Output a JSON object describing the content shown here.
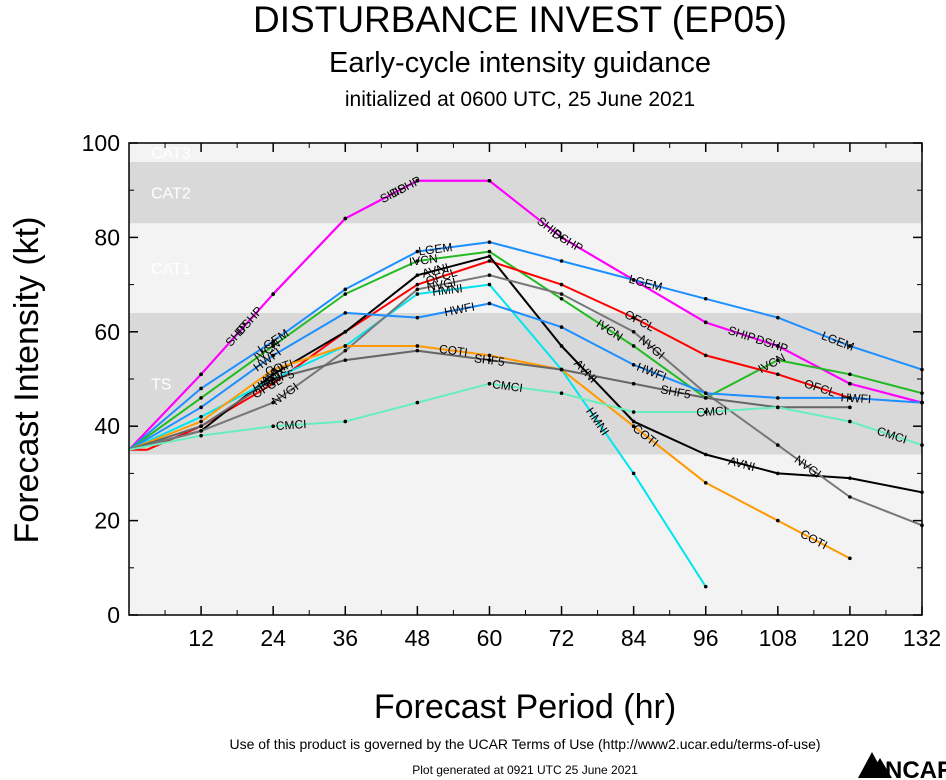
{
  "chart_data": {
    "type": "line",
    "title": "DISTURBANCE INVEST (EP05)",
    "subtitle": "Early-cycle intensity guidance",
    "subtitle2": "initialized at 0600 UTC, 25 June 2021",
    "xlabel": "Forecast Period (hr)",
    "ylabel": "Forecast Intensity (kt)",
    "xlim": [
      0,
      132
    ],
    "ylim": [
      0,
      100
    ],
    "xticks": [
      12,
      24,
      36,
      48,
      60,
      72,
      84,
      96,
      108,
      120,
      132
    ],
    "yticks": [
      0,
      20,
      40,
      60,
      80,
      100
    ],
    "bands": [
      {
        "name": "TS",
        "from": 34,
        "to": 64,
        "color": "#d9d9d9"
      },
      {
        "name": "CAT1",
        "from": 64,
        "to": 83,
        "color": "#f3f3f3"
      },
      {
        "name": "CAT2",
        "from": 83,
        "to": 96,
        "color": "#d9d9d9"
      },
      {
        "name": "CAT3",
        "from": 96,
        "to": 100,
        "color": "#f3f3f3"
      }
    ],
    "series": [
      {
        "name": "SHIP",
        "color": "#ff00ff",
        "x": [
          0,
          12,
          24,
          36,
          48,
          60,
          72,
          84,
          96,
          108,
          120,
          132
        ],
        "values": [
          35,
          51,
          68,
          84,
          92,
          92,
          80,
          71,
          62,
          57,
          49,
          45
        ],
        "labels": [
          {
            "text": "SHIP",
            "x": 18
          },
          {
            "text": "SHIP",
            "x": 44
          },
          {
            "text": "SHIP",
            "x": 70
          },
          {
            "text": "SHIP",
            "x": 102
          }
        ]
      },
      {
        "name": "DSHP",
        "color": "#ff00ff",
        "x": [
          0,
          12,
          24,
          36,
          48,
          60,
          72,
          84,
          96,
          108,
          120,
          132
        ],
        "values": [
          35,
          51,
          68,
          84,
          92,
          92,
          80,
          71,
          62,
          57,
          49,
          45
        ],
        "labels": [
          {
            "text": "DSHP",
            "x": 20
          },
          {
            "text": "DSHP",
            "x": 46
          },
          {
            "text": "DSHP",
            "x": 73
          },
          {
            "text": "DSHP",
            "x": 107
          }
        ]
      },
      {
        "name": "LGEM",
        "color": "#1e8fff",
        "x": [
          0,
          12,
          24,
          36,
          48,
          60,
          72,
          84,
          96,
          108,
          120,
          132
        ],
        "values": [
          35,
          48,
          58,
          69,
          77,
          79,
          75,
          71,
          67,
          63,
          57,
          52
        ],
        "labels": [
          {
            "text": "LGEM",
            "x": 24
          },
          {
            "text": "LGEM",
            "x": 51
          },
          {
            "text": "LGEM",
            "x": 86
          },
          {
            "text": "LGEM",
            "x": 118
          }
        ]
      },
      {
        "name": "IVCN",
        "color": "#22bb22",
        "x": [
          0,
          12,
          24,
          36,
          48,
          60,
          72,
          84,
          96,
          108,
          120,
          132
        ],
        "values": [
          35,
          46,
          57,
          68,
          75,
          77,
          67,
          57,
          46,
          54,
          51,
          47
        ],
        "labels": [
          {
            "text": "IVCN",
            "x": 23
          },
          {
            "text": "IVCN",
            "x": 49
          },
          {
            "text": "IVCN",
            "x": 80
          },
          {
            "text": "IVCN",
            "x": 107
          }
        ]
      },
      {
        "name": "OFCL",
        "color": "#ff0000",
        "x": [
          0,
          3,
          12,
          24,
          36,
          48,
          60,
          72,
          84,
          96,
          108,
          120
        ],
        "values": [
          35,
          35,
          40,
          49,
          60,
          70,
          75,
          70,
          63,
          55,
          51,
          46
        ],
        "labels": [
          {
            "text": "OFCL",
            "x": 23
          },
          {
            "text": "OFCL",
            "x": 52
          },
          {
            "text": "OFCL",
            "x": 85
          },
          {
            "text": "OFCL",
            "x": 115
          }
        ]
      },
      {
        "name": "AVNI",
        "color": "#000000",
        "x": [
          0,
          12,
          24,
          36,
          48,
          60,
          72,
          84,
          96,
          108,
          120,
          132
        ],
        "values": [
          35,
          39,
          51,
          60,
          72,
          76,
          57,
          41,
          34,
          30,
          29,
          26
        ],
        "labels": [
          {
            "text": "AVNI",
            "x": 24
          },
          {
            "text": "AVNI",
            "x": 51
          },
          {
            "text": "AVNI",
            "x": 76
          },
          {
            "text": "AVNI",
            "x": 102
          }
        ]
      },
      {
        "name": "HMNI",
        "color": "#00e5ee",
        "x": [
          0,
          12,
          24,
          36,
          48,
          60,
          72,
          84,
          96
        ],
        "values": [
          35,
          42,
          50,
          57,
          68,
          70,
          52,
          30,
          6
        ],
        "labels": [
          {
            "text": "HMNI",
            "x": 23
          },
          {
            "text": "HMNI",
            "x": 53
          },
          {
            "text": "HMNI",
            "x": 78
          }
        ]
      },
      {
        "name": "NVGI",
        "color": "#777777",
        "x": [
          0,
          12,
          24,
          36,
          48,
          60,
          72,
          84,
          96,
          108,
          120,
          132
        ],
        "values": [
          35,
          39,
          45,
          56,
          69,
          72,
          68,
          60,
          47,
          36,
          25,
          19
        ],
        "labels": [
          {
            "text": "NVGI",
            "x": 26
          },
          {
            "text": "NVGI",
            "x": 52
          },
          {
            "text": "NVGI",
            "x": 87
          },
          {
            "text": "NVGI",
            "x": 113
          }
        ]
      },
      {
        "name": "HWFI",
        "color": "#1e8fff",
        "x": [
          0,
          12,
          24,
          36,
          48,
          60,
          72,
          84,
          96,
          108,
          120,
          132
        ],
        "values": [
          35,
          44,
          55,
          64,
          63,
          66,
          61,
          53,
          47,
          46,
          46,
          45
        ],
        "labels": [
          {
            "text": "HWFI",
            "x": 23
          },
          {
            "text": "HWFI",
            "x": 55
          },
          {
            "text": "HWFI",
            "x": 87
          },
          {
            "text": "HWFI",
            "x": 121
          }
        ]
      },
      {
        "name": "COTI",
        "color": "#ff9900",
        "x": [
          0,
          12,
          24,
          36,
          48,
          60,
          72,
          84,
          96,
          108,
          120
        ],
        "values": [
          35,
          41,
          52,
          57,
          57,
          55,
          52,
          40,
          28,
          20,
          12
        ],
        "labels": [
          {
            "text": "COTI",
            "x": 25
          },
          {
            "text": "COTI",
            "x": 54
          },
          {
            "text": "COTI",
            "x": 86
          },
          {
            "text": "COTI",
            "x": 114
          }
        ]
      },
      {
        "name": "SHF5",
        "color": "#666666",
        "x": [
          0,
          12,
          24,
          36,
          48,
          60,
          72,
          84,
          96,
          108,
          120
        ],
        "values": [
          35,
          40,
          50,
          54,
          56,
          54,
          52,
          49,
          46,
          44,
          44
        ],
        "labels": [
          {
            "text": "SHF5",
            "x": 25
          },
          {
            "text": "SHF5",
            "x": 60
          },
          {
            "text": "SHF5",
            "x": 91
          }
        ]
      },
      {
        "name": "CMCI",
        "color": "#66eebb",
        "x": [
          0,
          12,
          24,
          36,
          48,
          60,
          72,
          84,
          96,
          108,
          120,
          132
        ],
        "values": [
          35,
          38,
          40,
          41,
          45,
          49,
          47,
          43,
          43,
          44,
          41,
          36
        ],
        "labels": [
          {
            "text": "CMCI",
            "x": 27
          },
          {
            "text": "CMCI",
            "x": 63
          },
          {
            "text": "CMCI",
            "x": 97
          },
          {
            "text": "CMCI",
            "x": 127
          }
        ]
      }
    ]
  },
  "footer": {
    "terms": "Use of this product is governed by the UCAR Terms of Use (http://www2.ucar.edu/terms-of-use)",
    "generated": "Plot generated at 0921 UTC   25 June 2021",
    "logo": "NCAR"
  }
}
